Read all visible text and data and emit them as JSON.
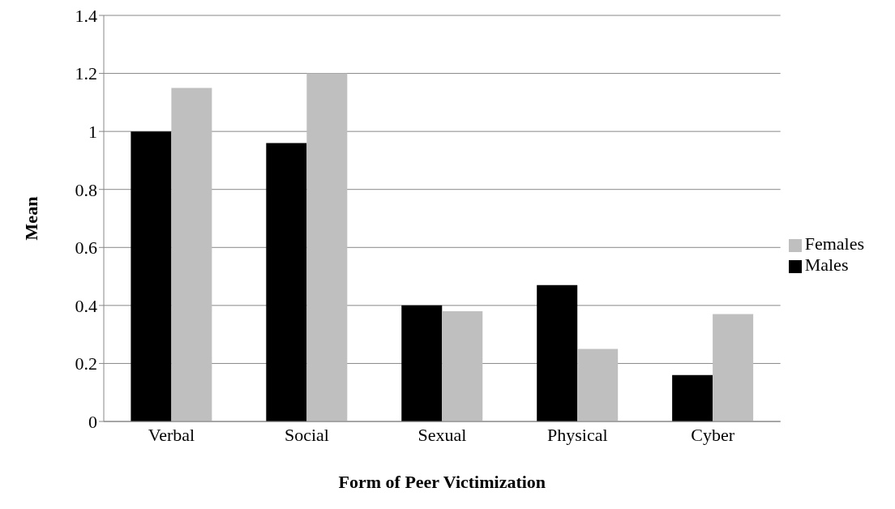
{
  "chart_data": {
    "type": "bar",
    "xlabel": "Form of Peer Victimization",
    "ylabel": "Mean",
    "categories": [
      "Verbal",
      "Social",
      "Sexual",
      "Physical",
      "Cyber"
    ],
    "series": [
      {
        "name": "Males",
        "color": "#000000",
        "values": [
          1.0,
          0.96,
          0.4,
          0.47,
          0.16
        ]
      },
      {
        "name": "Females",
        "color": "#bfbfbf",
        "values": [
          1.15,
          1.2,
          0.38,
          0.25,
          0.37
        ]
      }
    ],
    "ylim": [
      0,
      1.4
    ],
    "yticks": [
      0,
      0.2,
      0.4,
      0.6,
      0.8,
      1,
      1.2,
      1.4
    ],
    "grid": "y",
    "legend": "right"
  }
}
